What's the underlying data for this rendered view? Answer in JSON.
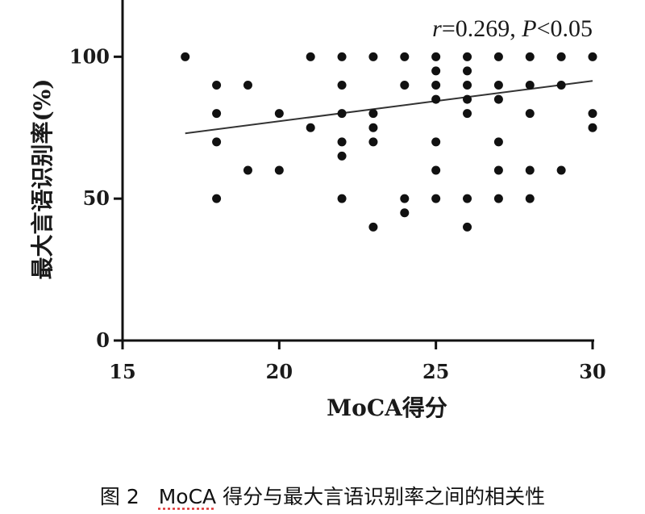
{
  "chart_data": {
    "type": "scatter",
    "xlabel": "MoCA得分",
    "ylabel": "最大言语识别率(%)",
    "xlim": [
      15,
      30
    ],
    "ylim": [
      0,
      120
    ],
    "x_ticks": [
      15,
      20,
      25,
      30
    ],
    "y_ticks": [
      0,
      50,
      100
    ],
    "grid": false,
    "annotation": {
      "r_symbol": "r",
      "r_text": "=0.269, ",
      "p_symbol": "P",
      "p_text": "<0.05"
    },
    "points": [
      [
        17,
        100
      ],
      [
        18,
        90
      ],
      [
        18,
        80
      ],
      [
        18,
        70
      ],
      [
        18,
        50
      ],
      [
        19,
        90
      ],
      [
        19,
        60
      ],
      [
        20,
        80
      ],
      [
        20,
        60
      ],
      [
        21,
        100
      ],
      [
        21,
        75
      ],
      [
        22,
        100
      ],
      [
        22,
        90
      ],
      [
        22,
        80
      ],
      [
        22,
        70
      ],
      [
        22,
        65
      ],
      [
        22,
        50
      ],
      [
        23,
        100
      ],
      [
        23,
        80
      ],
      [
        23,
        75
      ],
      [
        23,
        70
      ],
      [
        23,
        40
      ],
      [
        24,
        100
      ],
      [
        24,
        90
      ],
      [
        24,
        50
      ],
      [
        24,
        45
      ],
      [
        25,
        100
      ],
      [
        25,
        95
      ],
      [
        25,
        90
      ],
      [
        25,
        85
      ],
      [
        25,
        70
      ],
      [
        25,
        60
      ],
      [
        25,
        50
      ],
      [
        26,
        100
      ],
      [
        26,
        95
      ],
      [
        26,
        90
      ],
      [
        26,
        85
      ],
      [
        26,
        80
      ],
      [
        26,
        50
      ],
      [
        26,
        40
      ],
      [
        27,
        100
      ],
      [
        27,
        90
      ],
      [
        27,
        85
      ],
      [
        27,
        70
      ],
      [
        27,
        60
      ],
      [
        27,
        50
      ],
      [
        28,
        100
      ],
      [
        28,
        90
      ],
      [
        28,
        80
      ],
      [
        28,
        60
      ],
      [
        28,
        50
      ],
      [
        29,
        100
      ],
      [
        29,
        90
      ],
      [
        29,
        60
      ],
      [
        30,
        100
      ],
      [
        30,
        80
      ],
      [
        30,
        75
      ]
    ],
    "trendline": {
      "x": [
        17,
        30
      ],
      "y": [
        73,
        91.5
      ]
    }
  },
  "caption": {
    "figure_number": "图 2",
    "moca": "MoCA",
    "text": " 得分与最大言语识别率之间的相关性"
  },
  "colors": {
    "ink": "#111111"
  }
}
